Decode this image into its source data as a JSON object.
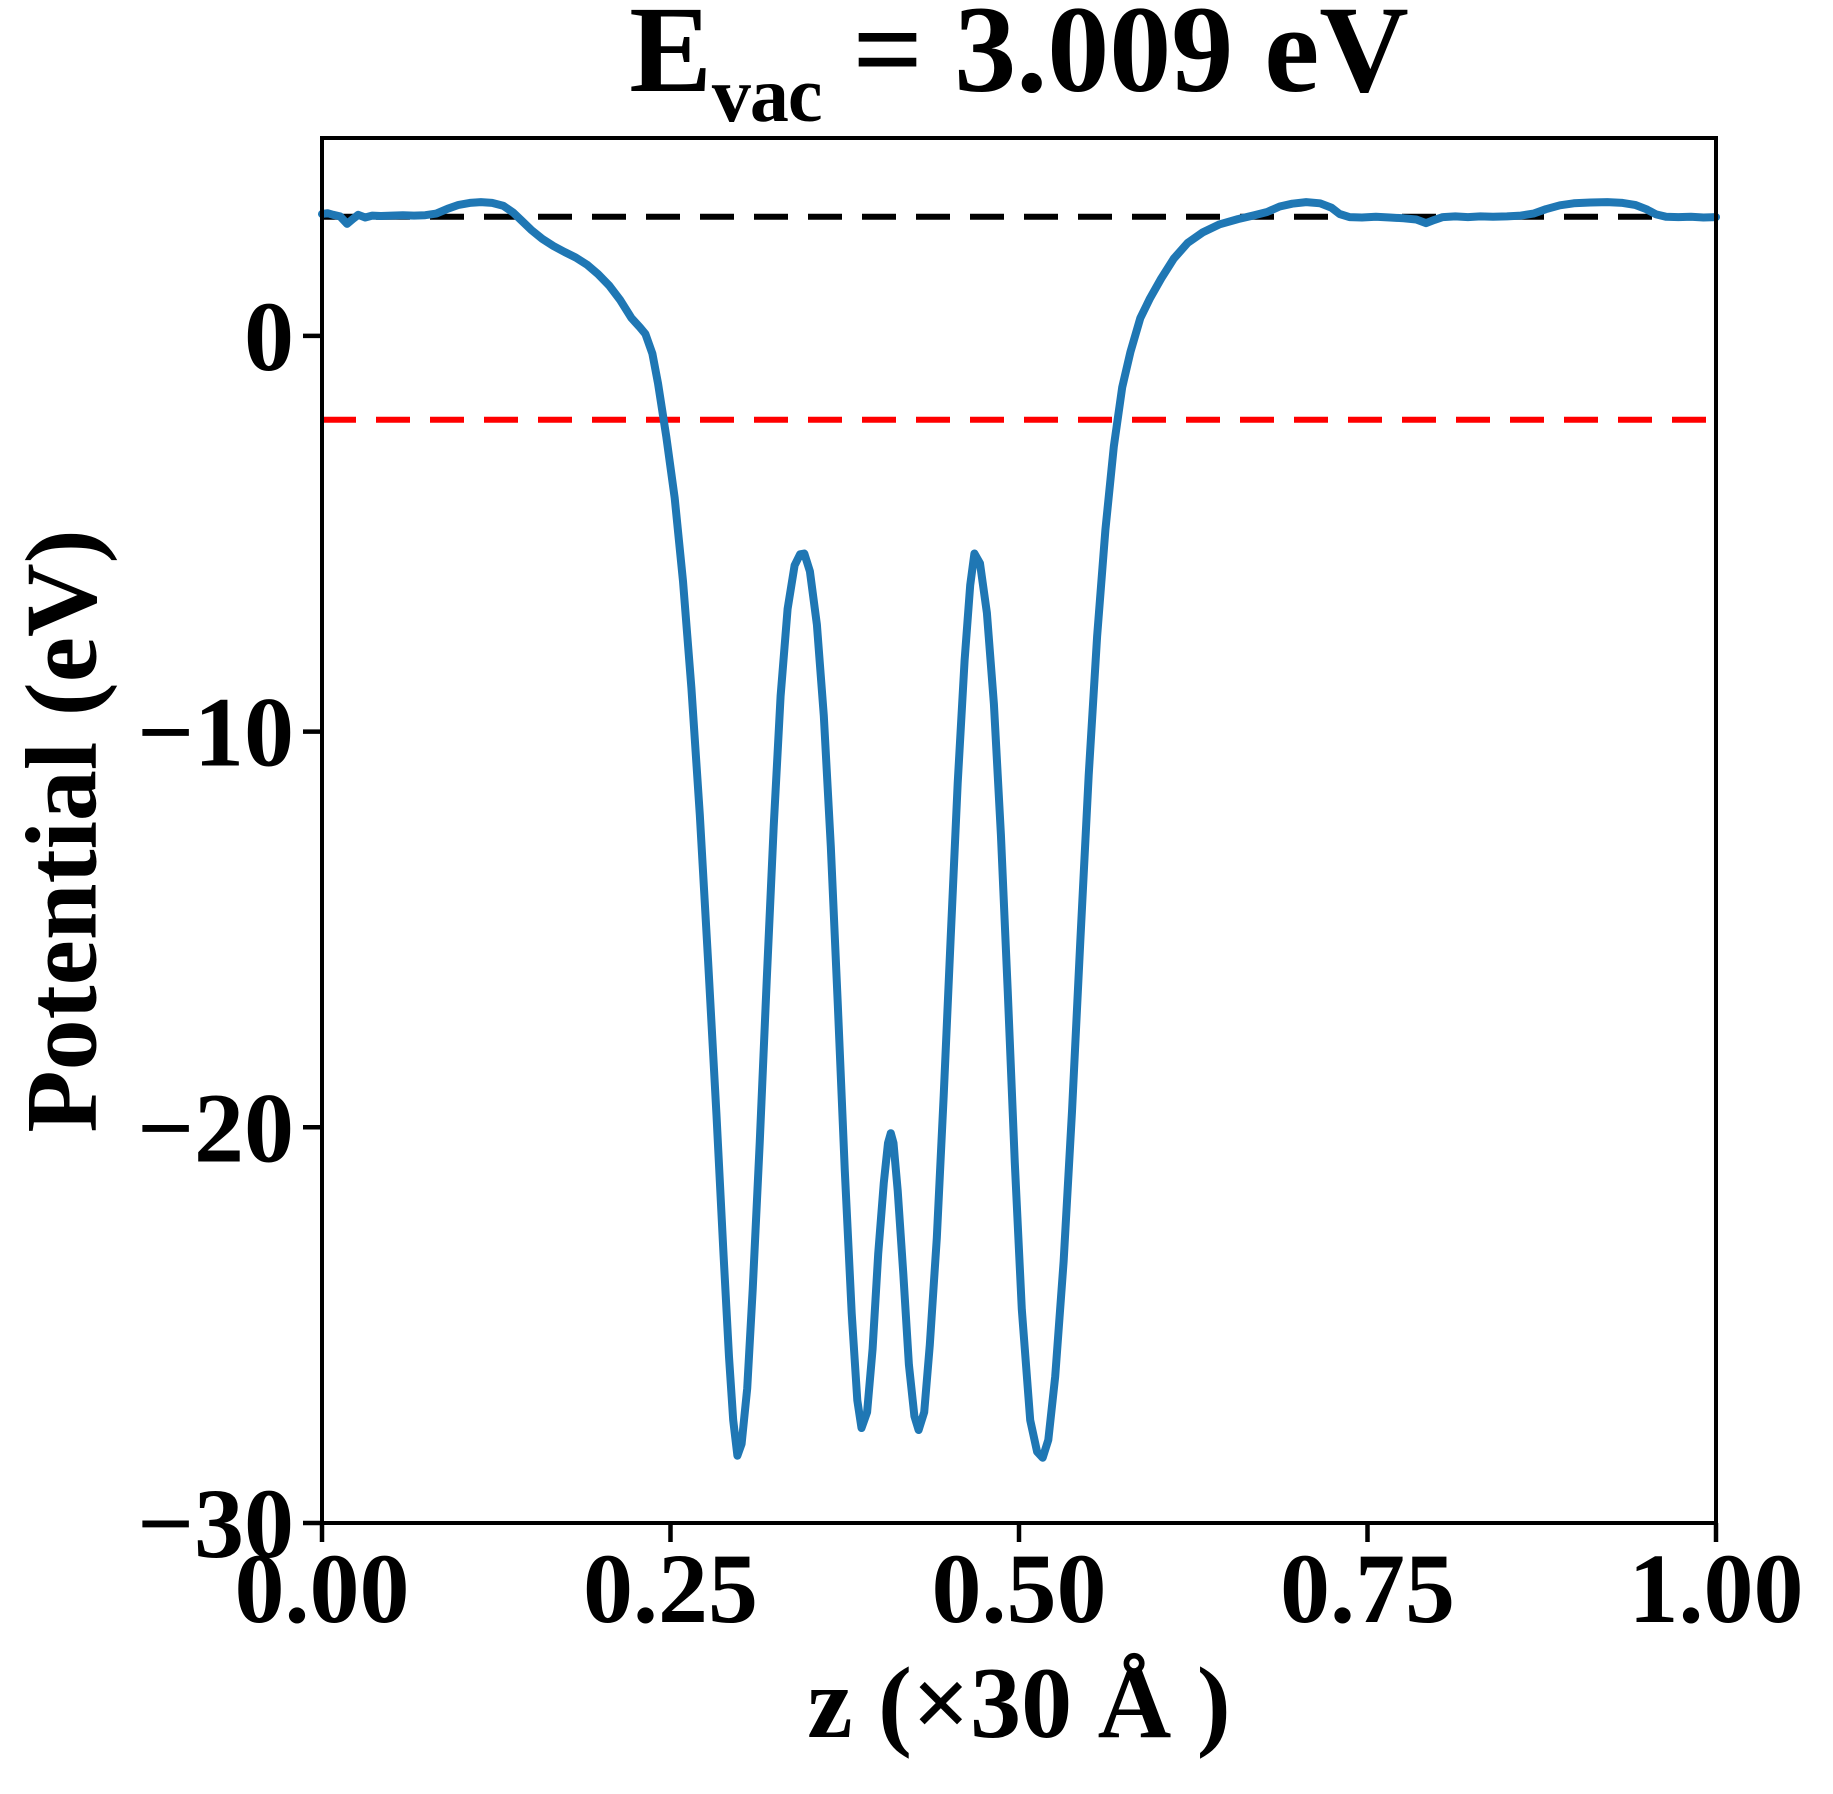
{
  "title": {
    "symbol": "E",
    "subscript": "vac",
    "equation": " = 3.009 eV"
  },
  "axes": {
    "xlabel": "z (×30 Å )",
    "ylabel": "Potential (eV)"
  },
  "chart_data": {
    "type": "line",
    "title": "E_vac = 3.009 eV",
    "xlabel": "z (×30 Å )",
    "ylabel": "Potential (eV)",
    "xlim": [
      0,
      1
    ],
    "ylim": [
      -30,
      5
    ],
    "grid": false,
    "legend": false,
    "x_ticks": [
      {
        "value": 0.0,
        "label": "0.00"
      },
      {
        "value": 0.25,
        "label": "0.25"
      },
      {
        "value": 0.5,
        "label": "0.50"
      },
      {
        "value": 0.75,
        "label": "0.75"
      },
      {
        "value": 1.0,
        "label": "1.00"
      }
    ],
    "y_ticks": [
      {
        "value": 0,
        "label": "0"
      },
      {
        "value": -10,
        "label": "−10"
      },
      {
        "value": -20,
        "label": "−20"
      },
      {
        "value": -30,
        "label": "−30"
      }
    ],
    "reference_lines": [
      {
        "name": "vacuum-level",
        "value": 3.009,
        "color": "#000000",
        "style": "dashed",
        "x_range": [
          0,
          0.962
        ]
      },
      {
        "name": "red-reference-level",
        "value": -2.12,
        "color": "#ff0000",
        "style": "dashed",
        "x_range": [
          0,
          1
        ]
      }
    ],
    "series": [
      {
        "name": "planar-averaged-potential",
        "color": "#1f77b4",
        "points": [
          [
            0.0,
            3.08
          ],
          [
            0.004,
            3.1
          ],
          [
            0.008,
            3.06
          ],
          [
            0.013,
            3.02
          ],
          [
            0.018,
            2.83
          ],
          [
            0.022,
            2.95
          ],
          [
            0.026,
            3.06
          ],
          [
            0.031,
            2.99
          ],
          [
            0.036,
            3.04
          ],
          [
            0.042,
            3.03
          ],
          [
            0.05,
            3.04
          ],
          [
            0.058,
            3.05
          ],
          [
            0.066,
            3.04
          ],
          [
            0.074,
            3.05
          ],
          [
            0.082,
            3.09
          ],
          [
            0.09,
            3.21
          ],
          [
            0.098,
            3.31
          ],
          [
            0.106,
            3.36
          ],
          [
            0.114,
            3.38
          ],
          [
            0.122,
            3.36
          ],
          [
            0.13,
            3.29
          ],
          [
            0.137,
            3.12
          ],
          [
            0.143,
            2.92
          ],
          [
            0.15,
            2.68
          ],
          [
            0.158,
            2.45
          ],
          [
            0.166,
            2.27
          ],
          [
            0.174,
            2.12
          ],
          [
            0.182,
            1.98
          ],
          [
            0.19,
            1.8
          ],
          [
            0.198,
            1.56
          ],
          [
            0.206,
            1.27
          ],
          [
            0.214,
            0.9
          ],
          [
            0.222,
            0.45
          ],
          [
            0.228,
            0.22
          ],
          [
            0.232,
            0.05
          ],
          [
            0.237,
            -0.45
          ],
          [
            0.241,
            -1.2
          ],
          [
            0.247,
            -2.55
          ],
          [
            0.253,
            -4.1
          ],
          [
            0.259,
            -6.2
          ],
          [
            0.265,
            -8.9
          ],
          [
            0.271,
            -12.1
          ],
          [
            0.277,
            -15.8
          ],
          [
            0.283,
            -19.7
          ],
          [
            0.288,
            -23.2
          ],
          [
            0.292,
            -25.8
          ],
          [
            0.295,
            -27.4
          ],
          [
            0.298,
            -28.3
          ],
          [
            0.301,
            -28.0
          ],
          [
            0.305,
            -26.6
          ],
          [
            0.309,
            -24.1
          ],
          [
            0.314,
            -20.4
          ],
          [
            0.319,
            -16.3
          ],
          [
            0.324,
            -12.4
          ],
          [
            0.329,
            -9.1
          ],
          [
            0.334,
            -6.9
          ],
          [
            0.339,
            -5.8
          ],
          [
            0.343,
            -5.52
          ],
          [
            0.346,
            -5.5
          ],
          [
            0.35,
            -5.95
          ],
          [
            0.355,
            -7.3
          ],
          [
            0.36,
            -9.6
          ],
          [
            0.365,
            -12.9
          ],
          [
            0.37,
            -16.9
          ],
          [
            0.375,
            -21.1
          ],
          [
            0.38,
            -24.7
          ],
          [
            0.384,
            -26.9
          ],
          [
            0.387,
            -27.6
          ],
          [
            0.391,
            -27.2
          ],
          [
            0.395,
            -25.6
          ],
          [
            0.399,
            -23.2
          ],
          [
            0.403,
            -21.4
          ],
          [
            0.406,
            -20.4
          ],
          [
            0.408,
            -20.15
          ],
          [
            0.41,
            -20.4
          ],
          [
            0.413,
            -21.6
          ],
          [
            0.417,
            -23.7
          ],
          [
            0.421,
            -26.0
          ],
          [
            0.425,
            -27.3
          ],
          [
            0.428,
            -27.65
          ],
          [
            0.432,
            -27.2
          ],
          [
            0.436,
            -25.5
          ],
          [
            0.441,
            -22.8
          ],
          [
            0.446,
            -19.2
          ],
          [
            0.451,
            -15.2
          ],
          [
            0.456,
            -11.3
          ],
          [
            0.461,
            -8.2
          ],
          [
            0.465,
            -6.3
          ],
          [
            0.468,
            -5.5
          ],
          [
            0.472,
            -5.75
          ],
          [
            0.477,
            -7.0
          ],
          [
            0.482,
            -9.3
          ],
          [
            0.487,
            -12.6
          ],
          [
            0.492,
            -16.6
          ],
          [
            0.497,
            -20.9
          ],
          [
            0.502,
            -24.6
          ],
          [
            0.508,
            -27.4
          ],
          [
            0.513,
            -28.2
          ],
          [
            0.517,
            -28.35
          ],
          [
            0.521,
            -27.9
          ],
          [
            0.526,
            -26.3
          ],
          [
            0.532,
            -23.4
          ],
          [
            0.538,
            -19.6
          ],
          [
            0.544,
            -15.3
          ],
          [
            0.55,
            -11.1
          ],
          [
            0.556,
            -7.6
          ],
          [
            0.562,
            -4.9
          ],
          [
            0.568,
            -2.8
          ],
          [
            0.574,
            -1.3
          ],
          [
            0.58,
            -0.4
          ],
          [
            0.587,
            0.45
          ],
          [
            0.594,
            0.95
          ],
          [
            0.602,
            1.45
          ],
          [
            0.611,
            1.95
          ],
          [
            0.621,
            2.35
          ],
          [
            0.632,
            2.62
          ],
          [
            0.644,
            2.82
          ],
          [
            0.657,
            2.95
          ],
          [
            0.669,
            3.05
          ],
          [
            0.678,
            3.13
          ],
          [
            0.687,
            3.27
          ],
          [
            0.696,
            3.34
          ],
          [
            0.706,
            3.38
          ],
          [
            0.716,
            3.35
          ],
          [
            0.724,
            3.24
          ],
          [
            0.73,
            3.08
          ],
          [
            0.737,
            3.0
          ],
          [
            0.746,
            2.99
          ],
          [
            0.756,
            3.01
          ],
          [
            0.766,
            2.99
          ],
          [
            0.776,
            2.97
          ],
          [
            0.785,
            2.94
          ],
          [
            0.792,
            2.85
          ],
          [
            0.798,
            2.93
          ],
          [
            0.804,
            3.0
          ],
          [
            0.813,
            3.02
          ],
          [
            0.822,
            3.0
          ],
          [
            0.831,
            3.02
          ],
          [
            0.84,
            3.01
          ],
          [
            0.85,
            3.02
          ],
          [
            0.86,
            3.04
          ],
          [
            0.869,
            3.09
          ],
          [
            0.878,
            3.2
          ],
          [
            0.888,
            3.3
          ],
          [
            0.898,
            3.35
          ],
          [
            0.91,
            3.37
          ],
          [
            0.922,
            3.38
          ],
          [
            0.933,
            3.36
          ],
          [
            0.942,
            3.31
          ],
          [
            0.95,
            3.2
          ],
          [
            0.957,
            3.07
          ],
          [
            0.964,
            3.01
          ],
          [
            0.973,
            3.0
          ],
          [
            0.982,
            3.01
          ],
          [
            0.991,
            2.99
          ],
          [
            1.0,
            3.0
          ]
        ]
      }
    ]
  }
}
